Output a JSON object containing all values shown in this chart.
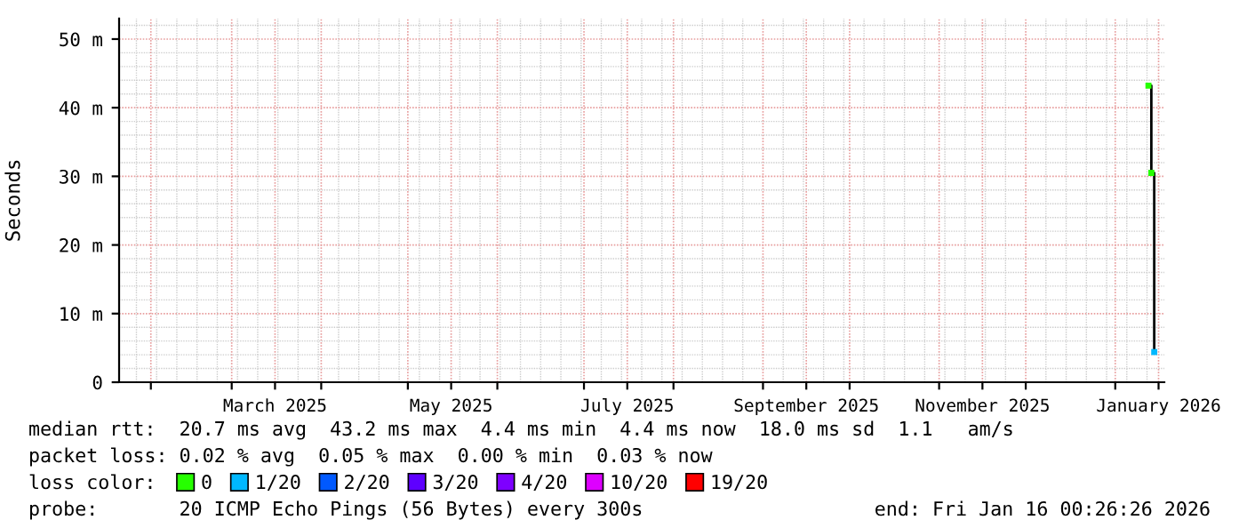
{
  "chart_data": {
    "type": "step",
    "ylabel": "Seconds",
    "xlim": [
      "2025-01-21",
      "2026-01-18"
    ],
    "ylim": [
      0,
      53
    ],
    "yticks": [
      0,
      {
        "value": 10,
        "label": "10 m"
      },
      {
        "value": 20,
        "label": "20 m"
      },
      {
        "value": 30,
        "label": "30 m"
      },
      {
        "value": 40,
        "label": "40 m"
      },
      {
        "value": 50,
        "label": "50 m"
      }
    ],
    "xticks": [
      {
        "value": "2025-02-01",
        "label": null
      },
      {
        "value": "2025-03-01",
        "label": null
      },
      {
        "value": "2025-03-16",
        "label": "March 2025"
      },
      {
        "value": "2025-04-01",
        "label": null
      },
      {
        "value": "2025-05-01",
        "label": null
      },
      {
        "value": "2025-05-16",
        "label": "May 2025"
      },
      {
        "value": "2025-06-01",
        "label": null
      },
      {
        "value": "2025-07-01",
        "label": null
      },
      {
        "value": "2025-07-16",
        "label": "July 2025"
      },
      {
        "value": "2025-08-01",
        "label": null
      },
      {
        "value": "2025-09-01",
        "label": null
      },
      {
        "value": "2025-09-16",
        "label": "September 2025"
      },
      {
        "value": "2025-10-01",
        "label": null
      },
      {
        "value": "2025-11-01",
        "label": null
      },
      {
        "value": "2025-11-16",
        "label": "November 2025"
      },
      {
        "value": "2025-12-01",
        "label": null
      },
      {
        "value": "2026-01-01",
        "label": null
      },
      {
        "value": "2026-01-16",
        "label": "January 2026"
      }
    ],
    "grid": true,
    "legend": "bottom",
    "legend_title": "loss color:",
    "marker": "square",
    "series": [
      {
        "color": "#000000",
        "marker": "none",
        "x": [
          "2026-01-12T12:00",
          "2026-01-13T12:00",
          "2026-01-14T12:00"
        ],
        "values": [
          43.2,
          30.5,
          4.4
        ]
      },
      {
        "type": "scatter",
        "name": "0",
        "color": "#26ff00",
        "x": [
          "2026-01-12T12:00",
          "2026-01-13T12:00"
        ],
        "values": [
          43.2,
          30.5
        ]
      },
      {
        "type": "scatter",
        "name": "1/20",
        "color": "#00b8ff",
        "x": [
          "2026-01-14T12:00"
        ],
        "values": [
          4.4
        ]
      },
      {
        "type": "scatter",
        "name": "2/20",
        "color": "#0059ff"
      },
      {
        "type": "scatter",
        "name": "3/20",
        "color": "#5e00ff"
      },
      {
        "type": "scatter",
        "name": "4/20",
        "color": "#7e00ff"
      },
      {
        "type": "scatter",
        "name": "10/20",
        "color": "#dd00ff"
      },
      {
        "type": "scatter",
        "name": "19/20",
        "color": "#ff0000"
      }
    ],
    "annotations": [
      "median rtt:  20.7 ms avg  43.2 ms max  4.4 ms min  4.4 ms now  18.0 ms sd  1.1   am/s",
      "packet loss: 0.02 % avg  0.05 % max  0.00 % min  0.03 % now",
      "probe:       20 ICMP Echo Pings (56 Bytes) every 300s",
      "end: Fri Jan 16 00:26:26 2026"
    ]
  }
}
